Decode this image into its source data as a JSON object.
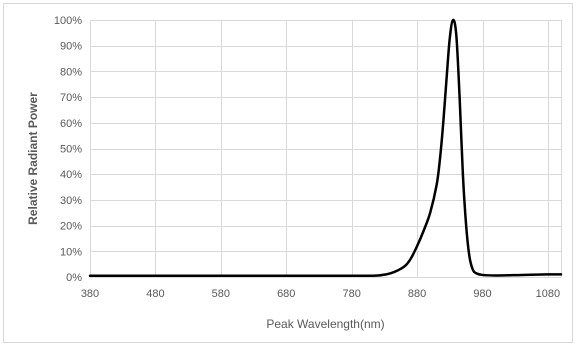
{
  "chart_data": {
    "type": "line",
    "title": "",
    "xlabel": "Peak Wavelength(nm)",
    "ylabel": "Relative Radiant Power",
    "xlim": [
      380,
      1100
    ],
    "ylim": [
      0,
      100
    ],
    "x_ticks": [
      380,
      480,
      580,
      680,
      780,
      880,
      980,
      1080
    ],
    "x_tick_labels": [
      "380",
      "480",
      "580",
      "680",
      "780",
      "880",
      "980",
      "1080"
    ],
    "y_ticks": [
      0,
      10,
      20,
      30,
      40,
      50,
      60,
      70,
      80,
      90,
      100
    ],
    "y_tick_labels": [
      "0%",
      "10%",
      "20%",
      "30%",
      "40%",
      "50%",
      "60%",
      "70%",
      "80%",
      "90%",
      "100%"
    ],
    "grid": true,
    "legend": "none",
    "line_color": "#000000",
    "series": [
      {
        "x": [
          380,
          500,
          600,
          700,
          780,
          820,
          840,
          860,
          870,
          880,
          890,
          900,
          910,
          915,
          920,
          925,
          930,
          935,
          940,
          945,
          950,
          955,
          960,
          965,
          970,
          980,
          1000,
          1040,
          1080,
          1100
        ],
        "values": [
          0.5,
          0.5,
          0.5,
          0.5,
          0.5,
          0.6,
          1.5,
          4,
          7,
          12,
          18,
          25,
          36,
          46,
          60,
          77,
          93,
          100,
          94,
          70,
          40,
          20,
          8,
          3,
          1.5,
          0.8,
          0.6,
          0.8,
          1.0,
          1.0
        ]
      }
    ]
  }
}
